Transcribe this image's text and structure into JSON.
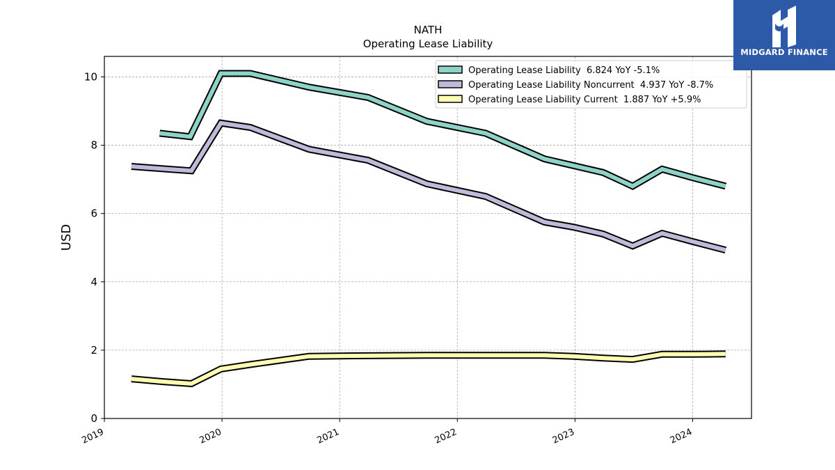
{
  "logo": {
    "text": "MIDGARD FINANCE",
    "icon": "midgard-logo-icon",
    "background": "#2c5aa8"
  },
  "chart_data": {
    "type": "line",
    "title": "NATH",
    "subtitle": "Operating Lease Liability",
    "xlabel": "",
    "ylabel": "USD",
    "xlim": [
      2019.0,
      2024.5
    ],
    "ylim": [
      0,
      10.6
    ],
    "x_ticks": [
      2019,
      2020,
      2021,
      2022,
      2023,
      2024
    ],
    "x_tick_labels": [
      "2019",
      "2020",
      "2021",
      "2022",
      "2023",
      "2024"
    ],
    "y_ticks": [
      0,
      2,
      4,
      6,
      8,
      10
    ],
    "y_tick_labels": [
      "0",
      "2",
      "4",
      "6",
      "8",
      "10"
    ],
    "grid": true,
    "legend_position": "top-right",
    "series": [
      {
        "name": "Operating Lease Liability",
        "legend_label": "Operating Lease Liability  6.824 YoY -5.1%",
        "color": "#8dd3c7",
        "x": [
          2019.47,
          2019.73,
          2019.99,
          2020.24,
          2020.74,
          2021.24,
          2021.74,
          2022.24,
          2022.74,
          2022.99,
          2023.24,
          2023.49,
          2023.74,
          2024.0,
          2024.28
        ],
        "y": [
          8.35,
          8.25,
          10.1,
          10.1,
          9.7,
          9.4,
          8.7,
          8.35,
          7.6,
          7.4,
          7.2,
          6.8,
          7.3,
          7.05,
          6.8
        ]
      },
      {
        "name": "Operating Lease Liability Noncurrent",
        "legend_label": "Operating Lease Liability Noncurrent  4.937 YoY -8.7%",
        "color": "#bebada",
        "x": [
          2019.23,
          2019.74,
          2019.99,
          2020.24,
          2020.74,
          2021.24,
          2021.74,
          2022.24,
          2022.74,
          2022.99,
          2023.24,
          2023.49,
          2023.74,
          2024.0,
          2024.28
        ],
        "y": [
          7.38,
          7.25,
          8.65,
          8.52,
          7.88,
          7.56,
          6.87,
          6.5,
          5.75,
          5.6,
          5.4,
          5.05,
          5.42,
          5.18,
          4.93
        ]
      },
      {
        "name": "Operating Lease Liability Current",
        "legend_label": "Operating Lease Liability Current  1.887 YoY +5.9%",
        "color": "#ffffb3",
        "x": [
          2019.23,
          2019.49,
          2019.74,
          2019.99,
          2020.24,
          2020.74,
          2020.99,
          2021.74,
          2022.24,
          2022.74,
          2022.99,
          2023.24,
          2023.49,
          2023.74,
          2024.0,
          2024.28
        ],
        "y": [
          1.16,
          1.08,
          1.02,
          1.45,
          1.58,
          1.82,
          1.83,
          1.85,
          1.85,
          1.85,
          1.82,
          1.77,
          1.73,
          1.88,
          1.88,
          1.89
        ]
      }
    ]
  }
}
